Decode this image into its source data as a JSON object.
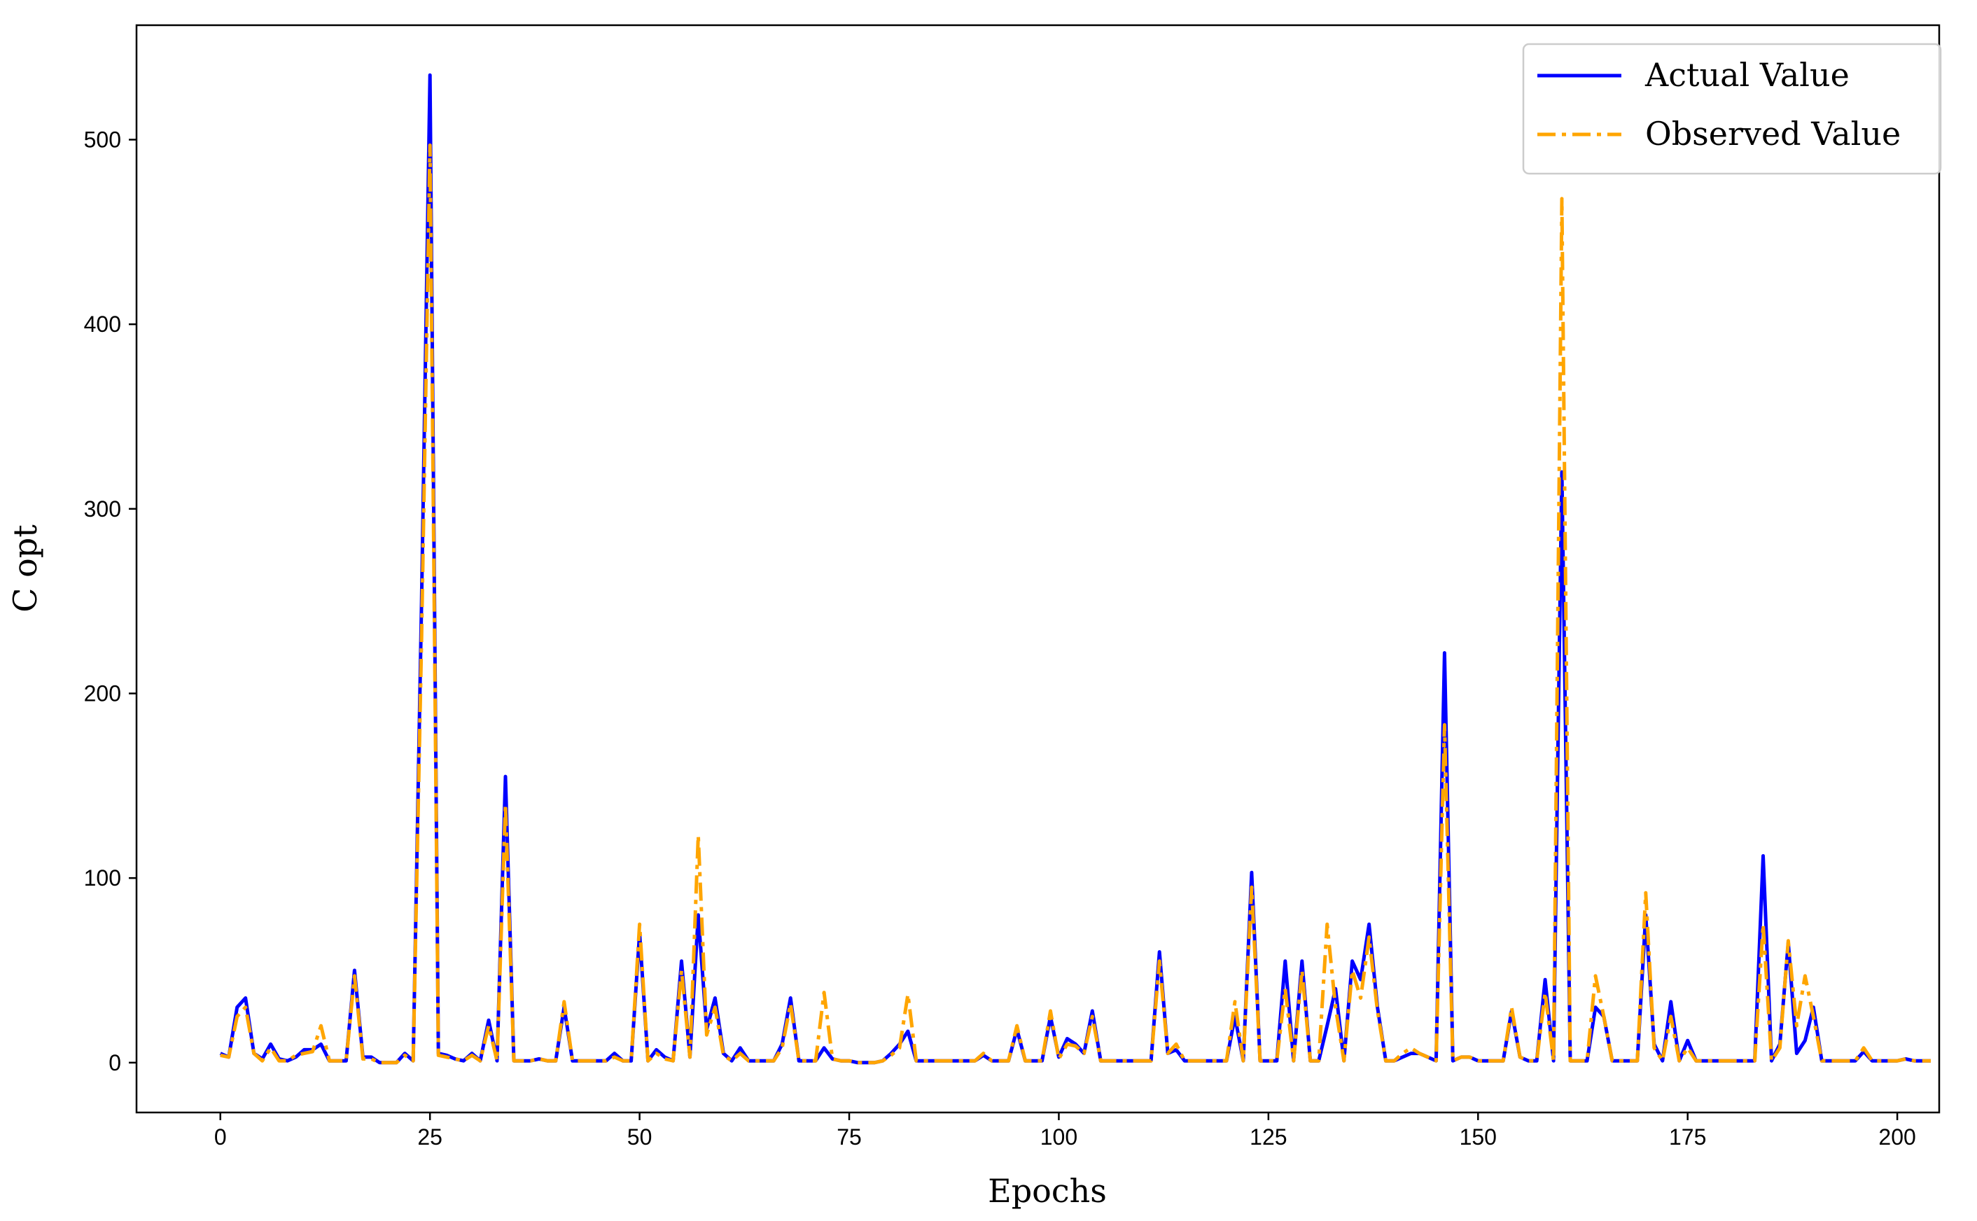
{
  "chart_data": {
    "type": "line",
    "xlabel": "Epochs",
    "ylabel": "C opt",
    "xlim": [
      -10,
      205
    ],
    "ylim": [
      -27,
      562
    ],
    "xticks": [
      0,
      25,
      50,
      75,
      100,
      125,
      150,
      175,
      200
    ],
    "yticks": [
      0,
      100,
      200,
      300,
      400,
      500
    ],
    "legend_position": "top-right",
    "series": [
      {
        "name": "Actual Value",
        "color": "#0000ff",
        "style": "solid",
        "values": [
          5,
          3,
          30,
          35,
          5,
          2,
          10,
          2,
          1,
          3,
          7,
          7,
          10,
          1,
          1,
          1,
          50,
          3,
          3,
          0,
          0,
          0,
          5,
          1,
          250,
          535,
          5,
          4,
          2,
          1,
          5,
          1,
          23,
          1,
          155,
          1,
          1,
          1,
          2,
          1,
          1,
          30,
          1,
          1,
          1,
          1,
          1,
          5,
          1,
          1,
          70,
          1,
          7,
          3,
          1,
          55,
          3,
          80,
          18,
          35,
          5,
          1,
          8,
          1,
          1,
          1,
          1,
          10,
          35,
          1,
          1,
          1,
          8,
          2,
          1,
          1,
          0,
          0,
          0,
          1,
          5,
          10,
          17,
          1,
          1,
          1,
          1,
          1,
          1,
          1,
          1,
          4,
          1,
          1,
          1,
          18,
          1,
          1,
          1,
          25,
          3,
          13,
          10,
          5,
          28,
          1,
          1,
          1,
          1,
          1,
          1,
          1,
          60,
          5,
          7,
          1,
          1,
          1,
          1,
          1,
          1,
          25,
          1,
          103,
          1,
          1,
          1,
          55,
          1,
          55,
          1,
          1,
          20,
          40,
          1,
          55,
          45,
          75,
          30,
          1,
          1,
          3,
          5,
          5,
          3,
          1,
          222,
          1,
          3,
          3,
          1,
          1,
          1,
          1,
          28,
          3,
          1,
          1,
          45,
          1,
          320,
          1,
          1,
          1,
          30,
          25,
          1,
          1,
          1,
          1,
          80,
          10,
          1,
          33,
          1,
          12,
          1,
          1,
          1,
          1,
          1,
          1,
          1,
          1,
          112,
          1,
          10,
          65,
          5,
          12,
          30,
          1,
          1,
          1,
          1,
          1,
          6,
          1,
          1,
          1,
          1,
          2,
          1,
          1,
          1
        ]
      },
      {
        "name": "Observed Value",
        "color": "#ffa500",
        "style": "dashdot",
        "values": [
          4,
          3,
          25,
          30,
          5,
          1,
          8,
          1,
          1,
          4,
          5,
          6,
          20,
          1,
          1,
          1,
          47,
          2,
          2,
          0,
          0,
          0,
          4,
          1,
          230,
          497,
          4,
          3,
          2,
          1,
          4,
          1,
          20,
          1,
          140,
          1,
          1,
          1,
          2,
          1,
          1,
          33,
          1,
          1,
          1,
          1,
          1,
          3,
          1,
          1,
          75,
          1,
          5,
          2,
          1,
          50,
          3,
          123,
          15,
          30,
          4,
          1,
          5,
          1,
          1,
          1,
          1,
          8,
          32,
          1,
          1,
          1,
          38,
          2,
          1,
          1,
          0,
          0,
          0,
          1,
          4,
          8,
          37,
          1,
          1,
          1,
          1,
          1,
          1,
          1,
          1,
          5,
          1,
          1,
          1,
          20,
          1,
          1,
          1,
          28,
          2,
          10,
          9,
          5,
          25,
          1,
          1,
          1,
          1,
          1,
          1,
          1,
          55,
          5,
          10,
          1,
          1,
          1,
          1,
          1,
          1,
          33,
          1,
          95,
          1,
          1,
          1,
          40,
          1,
          50,
          1,
          1,
          75,
          30,
          1,
          50,
          35,
          68,
          28,
          1,
          1,
          5,
          8,
          5,
          3,
          1,
          183,
          1,
          3,
          3,
          1,
          1,
          1,
          1,
          30,
          3,
          1,
          1,
          38,
          1,
          468,
          1,
          1,
          1,
          47,
          25,
          1,
          1,
          1,
          1,
          92,
          8,
          1,
          25,
          1,
          8,
          1,
          1,
          1,
          1,
          1,
          1,
          1,
          1,
          75,
          1,
          8,
          66,
          20,
          47,
          25,
          1,
          1,
          1,
          1,
          1,
          8,
          1,
          1,
          1,
          1,
          2,
          1,
          1,
          1
        ]
      }
    ]
  }
}
